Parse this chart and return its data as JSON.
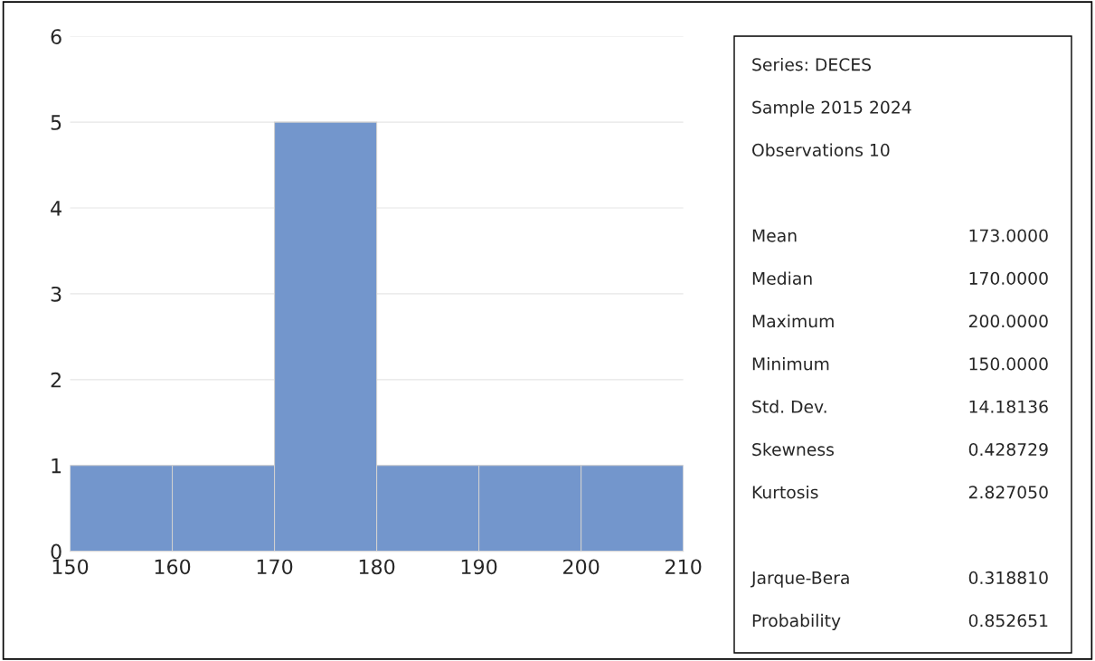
{
  "chart_data": {
    "type": "histogram",
    "bins": [
      150,
      160,
      170,
      180,
      190,
      200,
      210
    ],
    "values": [
      1,
      1,
      5,
      1,
      1,
      1
    ],
    "color": "#7396cc",
    "xlim": [
      150,
      210
    ],
    "xticks": [
      150,
      160,
      170,
      180,
      190,
      200,
      210
    ],
    "ylim": [
      0,
      6
    ],
    "yticks": [
      0,
      1,
      2,
      3,
      4,
      5,
      6
    ],
    "grid": "y",
    "annotations": [
      "Series: DECES",
      "Sample 2015 2024",
      "Observations 10",
      "Mean",
      "173.0000",
      "Median",
      "170.0000",
      "Maximum",
      "200.0000",
      "Minimum",
      "150.0000",
      "Std. Dev.",
      "14.18136",
      "Skewness",
      "0.428729",
      "Kurtosis",
      "2.827050",
      "Jarque-Bera",
      "0.318810",
      "Probability",
      "0.852651"
    ]
  }
}
